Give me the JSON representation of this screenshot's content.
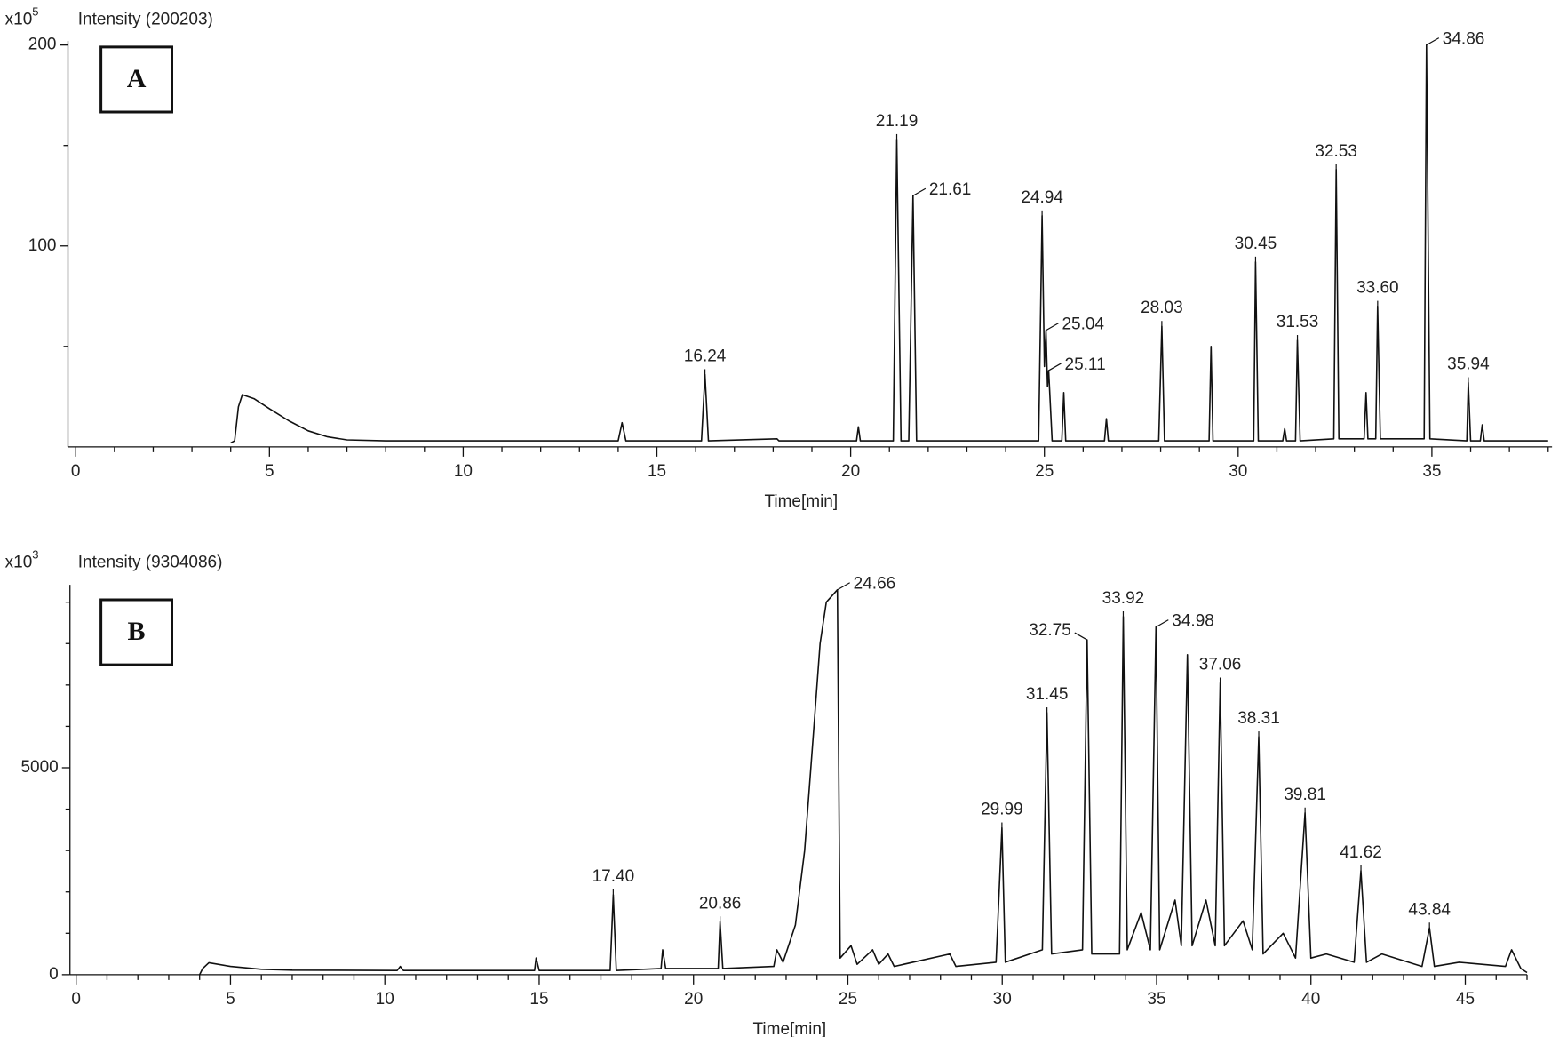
{
  "chart_data": [
    {
      "type": "line",
      "panel_label": "A",
      "y_unit": {
        "base": "x10",
        "exponent": 5
      },
      "y_title": "Intensity (200203)",
      "x_title": "Time[min]",
      "xlim": [
        -0.2,
        38.1
      ],
      "xticks": [
        0,
        5,
        10,
        15,
        20,
        25,
        30,
        35
      ],
      "xticks_minor": [
        1,
        2,
        3,
        4,
        6,
        7,
        8,
        9,
        11,
        12,
        13,
        14,
        16,
        17,
        18,
        19,
        21,
        22,
        23,
        24,
        26,
        27,
        28,
        29,
        31,
        32,
        33,
        34,
        36,
        37,
        38
      ],
      "ylim": [
        0,
        202
      ],
      "yticks": [
        100,
        200
      ],
      "yticks_minor": [
        50,
        150
      ],
      "series": [
        {
          "color": "#111111",
          "x": [
            4.0,
            4.1,
            4.2,
            4.3,
            4.6,
            5,
            5.5,
            6,
            6.5,
            7,
            8,
            10,
            14.0,
            14.1,
            14.2,
            16.15,
            16.24,
            16.33,
            18.1,
            18.15,
            20.15,
            20.2,
            20.25,
            21.1,
            21.19,
            21.3,
            21.5,
            21.61,
            21.7,
            24.85,
            24.94,
            25.0,
            25.04,
            25.08,
            25.11,
            25.2,
            25.45,
            25.5,
            25.55,
            26.55,
            26.6,
            26.65,
            27.95,
            28.03,
            28.1,
            29.25,
            29.3,
            29.35,
            30.4,
            30.45,
            30.52,
            31.15,
            31.2,
            31.25,
            31.48,
            31.53,
            31.6,
            32.47,
            32.53,
            32.6,
            33.25,
            33.3,
            33.35,
            33.55,
            33.6,
            33.67,
            34.8,
            34.86,
            34.95,
            35.9,
            35.94,
            36.0,
            36.25,
            36.3,
            36.35,
            37.5,
            38.0
          ],
          "values": [
            2,
            3,
            20,
            26,
            24,
            19,
            13,
            8,
            5,
            3.5,
            3,
            3,
            3,
            12,
            3,
            3,
            36,
            3,
            4,
            3,
            3,
            10,
            3,
            3,
            153,
            3,
            3,
            125,
            3,
            3,
            115,
            40,
            58,
            30,
            38,
            3,
            3,
            27,
            3,
            3,
            14,
            3,
            3,
            60,
            3,
            3,
            50,
            3,
            3,
            92,
            3,
            3,
            9,
            3,
            3,
            53,
            3,
            4,
            138,
            4,
            4,
            27,
            4,
            4,
            70,
            4,
            4,
            200,
            4,
            3,
            32,
            3,
            3,
            11,
            3,
            3,
            3
          ]
        }
      ],
      "peak_labels": [
        {
          "value": 16.24,
          "label": "16.24"
        },
        {
          "value": 21.19,
          "label": "21.19"
        },
        {
          "value": 21.61,
          "label": "21.61"
        },
        {
          "value": 24.94,
          "label": "24.94"
        },
        {
          "value": 25.04,
          "label": "25.04"
        },
        {
          "value": 25.11,
          "label": "25.11"
        },
        {
          "value": 28.03,
          "label": "28.03"
        },
        {
          "value": 30.45,
          "label": "30.45"
        },
        {
          "value": 31.53,
          "label": "31.53"
        },
        {
          "value": 32.53,
          "label": "32.53"
        },
        {
          "value": 33.6,
          "label": "33.60"
        },
        {
          "value": 34.86,
          "label": "34.86"
        },
        {
          "value": 35.94,
          "label": "35.94"
        }
      ]
    },
    {
      "type": "line",
      "panel_label": "B",
      "y_unit": {
        "base": "x10",
        "exponent": 3
      },
      "y_title": "Intensity (9304086)",
      "x_title": "Time[min]",
      "xlim": [
        -0.2,
        47
      ],
      "xticks": [
        0,
        5,
        10,
        15,
        20,
        25,
        30,
        35,
        40,
        45
      ],
      "xticks_minor": [
        1,
        2,
        3,
        4,
        6,
        7,
        8,
        9,
        11,
        12,
        13,
        14,
        16,
        17,
        18,
        19,
        21,
        22,
        23,
        24,
        26,
        27,
        28,
        29,
        31,
        32,
        33,
        34,
        36,
        37,
        38,
        39,
        41,
        42,
        43,
        44,
        46,
        47
      ],
      "ylim": [
        0,
        9420
      ],
      "yticks": [
        0,
        5000
      ],
      "yticks_minor": [
        1000,
        2000,
        3000,
        4000,
        6000,
        7000,
        8000,
        9000
      ],
      "series": [
        {
          "color": "#111111",
          "x": [
            4.0,
            4.1,
            4.3,
            5,
            6,
            7,
            10.4,
            10.5,
            10.6,
            14.85,
            14.9,
            15.0,
            17.3,
            17.4,
            17.5,
            18.95,
            19.0,
            19.1,
            20.8,
            20.86,
            20.95,
            22.6,
            22.7,
            22.9,
            23.3,
            23.6,
            23.9,
            24.1,
            24.3,
            24.66,
            24.75,
            25.1,
            25.3,
            25.8,
            26.0,
            26.3,
            26.5,
            28.3,
            28.5,
            29.8,
            29.99,
            30.1,
            31.3,
            31.45,
            31.6,
            32.6,
            32.75,
            32.9,
            33.8,
            33.92,
            34.05,
            34.5,
            34.8,
            34.98,
            35.1,
            35.6,
            35.8,
            36.0,
            36.15,
            36.6,
            36.9,
            37.06,
            37.2,
            37.8,
            38.1,
            38.31,
            38.45,
            39.1,
            39.5,
            39.81,
            40.0,
            40.5,
            41.4,
            41.62,
            41.8,
            42.3,
            43.6,
            43.84,
            44.0,
            44.8,
            46.3,
            46.5,
            46.8,
            47.0
          ],
          "values": [
            0,
            150,
            290,
            200,
            130,
            110,
            100,
            200,
            100,
            100,
            400,
            100,
            100,
            1930,
            100,
            150,
            600,
            150,
            150,
            1280,
            150,
            200,
            600,
            300,
            1200,
            3000,
            6000,
            8000,
            9000,
            9300,
            400,
            700,
            250,
            600,
            250,
            500,
            200,
            500,
            200,
            300,
            3550,
            300,
            600,
            6330,
            500,
            600,
            8090,
            500,
            500,
            8650,
            600,
            1500,
            600,
            8400,
            600,
            1800,
            700,
            7730,
            700,
            1800,
            700,
            7050,
            700,
            1300,
            600,
            5750,
            500,
            1000,
            400,
            3910,
            400,
            500,
            300,
            2510,
            300,
            500,
            200,
            1130,
            200,
            300,
            200,
            600,
            150,
            50
          ]
        }
      ],
      "peak_labels": [
        {
          "value": 17.4,
          "label": "17.40"
        },
        {
          "value": 20.86,
          "label": "20.86"
        },
        {
          "value": 24.66,
          "label": "24.66"
        },
        {
          "value": 29.99,
          "label": "29.99"
        },
        {
          "value": 31.45,
          "label": "31.45"
        },
        {
          "value": 32.75,
          "label": "32.75"
        },
        {
          "value": 33.92,
          "label": "33.92"
        },
        {
          "value": 34.98,
          "label": "34.98"
        },
        {
          "value": 37.06,
          "label": "37.06"
        },
        {
          "value": 38.31,
          "label": "38.31"
        },
        {
          "value": 39.81,
          "label": "39.81"
        },
        {
          "value": 41.62,
          "label": "41.62"
        },
        {
          "value": 43.84,
          "label": "43.84"
        }
      ]
    }
  ]
}
